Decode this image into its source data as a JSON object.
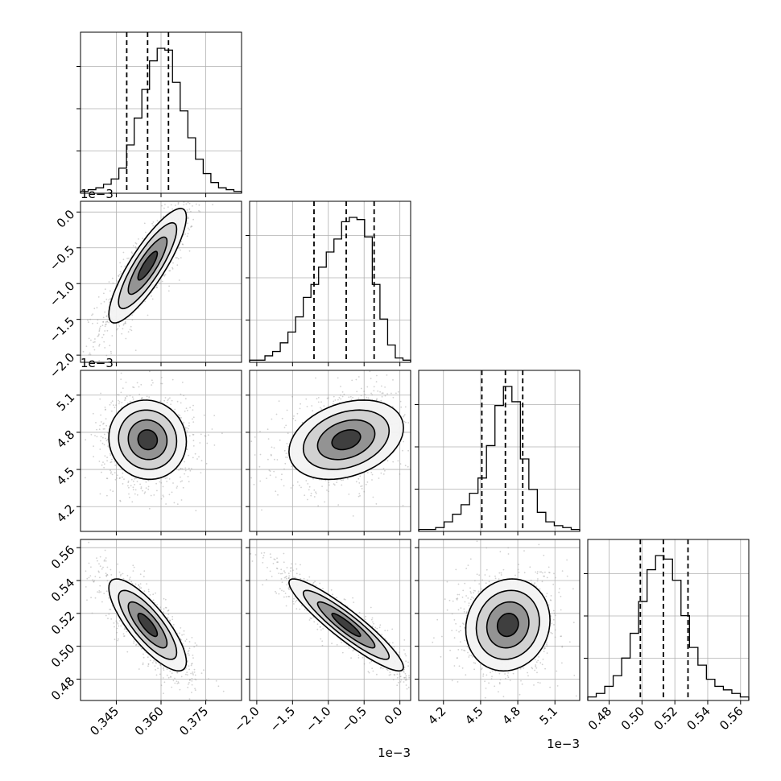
{
  "chart_data": {
    "type": "corner",
    "parameters": [
      {
        "id": "p1",
        "range": [
          0.333,
          0.387
        ],
        "ticks": [
          0.345,
          0.36,
          0.375
        ],
        "tick_labels": [
          "0.345",
          "0.360",
          "0.375"
        ],
        "offset_text": ""
      },
      {
        "id": "p2",
        "range": [
          -0.0021,
          0.00015
        ],
        "ticks": [
          -0.002,
          -0.0015,
          -0.001,
          -0.0005,
          0.0
        ],
        "tick_labels": [
          "−2.0",
          "−1.5",
          "−1.0",
          "−0.5",
          "0.0"
        ],
        "offset_text": "1e−3"
      },
      {
        "id": "p3",
        "range": [
          0.004,
          0.0053
        ],
        "ticks": [
          0.0042,
          0.0045,
          0.0048,
          0.0051
        ],
        "tick_labels": [
          "4.2",
          "4.5",
          "4.8",
          "5.1"
        ],
        "offset_text": "1e−3"
      },
      {
        "id": "p4",
        "range": [
          0.467,
          0.565
        ],
        "ticks": [
          0.48,
          0.5,
          0.52,
          0.54,
          0.56
        ],
        "tick_labels": [
          "0.48",
          "0.50",
          "0.52",
          "0.54",
          "0.56"
        ],
        "offset_text": ""
      }
    ],
    "histograms": [
      {
        "param": 0,
        "quantiles": [
          0.3485,
          0.3555,
          0.3625
        ],
        "bin_edges_range": [
          0.333,
          0.387
        ],
        "bin_counts": [
          1,
          2,
          3,
          5,
          8,
          14,
          27,
          42,
          58,
          74,
          81,
          80,
          62,
          46,
          31,
          19,
          11,
          6,
          3,
          2,
          1
        ]
      },
      {
        "param": 1,
        "quantiles": [
          -0.0012,
          -0.00075,
          -0.00036
        ],
        "bin_edges_range": [
          -0.0021,
          0.00015
        ],
        "bin_counts": [
          1,
          1,
          3,
          5,
          9,
          14,
          21,
          30,
          36,
          44,
          51,
          57,
          65,
          67,
          66,
          58,
          36,
          20,
          8,
          2,
          1
        ]
      },
      {
        "param": 2,
        "quantiles": [
          0.00451,
          0.0047,
          0.00484
        ],
        "bin_edges_range": [
          0.004,
          0.0053
        ],
        "bin_counts": [
          1,
          1,
          2,
          5,
          9,
          14,
          20,
          28,
          45,
          66,
          76,
          68,
          38,
          22,
          10,
          5,
          3,
          2,
          1
        ]
      },
      {
        "param": 3,
        "quantiles": [
          0.499,
          0.513,
          0.528
        ],
        "bin_edges_range": [
          0.467,
          0.565
        ],
        "bin_counts": [
          1,
          2,
          4,
          7,
          12,
          19,
          28,
          37,
          41,
          40,
          34,
          24,
          15,
          10,
          6,
          4,
          3,
          2,
          1
        ]
      }
    ],
    "pairs": [
      {
        "row": 1,
        "col": 0,
        "mean": [
          0.3555,
          -0.00075
        ],
        "sigma": [
          0.0065,
          0.0004
        ],
        "corr": 0.85
      },
      {
        "row": 2,
        "col": 0,
        "mean": [
          0.3555,
          0.00474
        ],
        "sigma": [
          0.0065,
          0.00016
        ],
        "corr": -0.05
      },
      {
        "row": 2,
        "col": 1,
        "mean": [
          -0.00075,
          0.00474
        ],
        "sigma": [
          0.0004,
          0.00016
        ],
        "corr": 0.3
      },
      {
        "row": 3,
        "col": 0,
        "mean": [
          0.3555,
          0.513
        ],
        "sigma": [
          0.0065,
          0.014
        ],
        "corr": -0.8
      },
      {
        "row": 3,
        "col": 1,
        "mean": [
          -0.00075,
          0.513
        ],
        "sigma": [
          0.0004,
          0.014
        ],
        "corr": -0.92
      },
      {
        "row": 3,
        "col": 2,
        "mean": [
          0.00472,
          0.513
        ],
        "sigma": [
          0.00017,
          0.014
        ],
        "corr": 0.1
      }
    ],
    "contour_levels_sigma": [
      0.5,
      1.0,
      1.5,
      2.0
    ],
    "grid": true
  },
  "colors": {
    "axis": "#000000",
    "grid": "#b0b0b0",
    "scatter": "#9a9a9a",
    "contour": "#000000",
    "quantile": "#000000"
  }
}
